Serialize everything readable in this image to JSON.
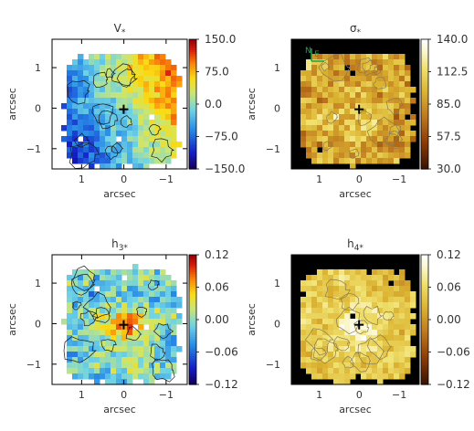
{
  "chart_data": [
    {
      "type": "heatmap",
      "title": "V",
      "title_sub": "*",
      "xlabel": "arcsec",
      "ylabel": "arcsec",
      "xticks": [
        "1",
        "0",
        "−1"
      ],
      "yticks": [
        "1",
        "0",
        "−1"
      ],
      "xlim": [
        1.7,
        -1.5
      ],
      "ylim": [
        -1.5,
        1.7
      ],
      "colorbar": {
        "ticks": [
          "150.0",
          "75.0",
          "0.0",
          "−75.0",
          "−150.0"
        ],
        "range": [
          -150,
          150
        ],
        "colormap": "jet"
      },
      "background": "#ffffff",
      "center_marker": "plus"
    },
    {
      "type": "heatmap",
      "title": "σ",
      "title_sub": "*",
      "xlabel": "arcsec",
      "ylabel": "arcsec",
      "xticks": [
        "1",
        "0",
        "−1"
      ],
      "yticks": [
        "1",
        "0",
        "−1"
      ],
      "xlim": [
        1.7,
        -1.5
      ],
      "ylim": [
        -1.5,
        1.7
      ],
      "colorbar": {
        "ticks": [
          "140.0",
          "112.5",
          "85.0",
          "57.5",
          "30.0"
        ],
        "range": [
          30,
          140
        ],
        "colormap": "heat"
      },
      "background": "#000000",
      "compass": {
        "north": "N",
        "east": "E",
        "color": "#1aa34a"
      },
      "center_marker": "plus"
    },
    {
      "type": "heatmap",
      "title": "h",
      "title_sub": "3*",
      "xlabel": "arcsec",
      "ylabel": "arcsec",
      "xticks": [
        "1",
        "0",
        "−1"
      ],
      "yticks": [
        "1",
        "0",
        "−1"
      ],
      "xlim": [
        1.7,
        -1.5
      ],
      "ylim": [
        -1.5,
        1.7
      ],
      "colorbar": {
        "ticks": [
          "0.12",
          "0.06",
          "0.00",
          "−0.06",
          "−0.12"
        ],
        "range": [
          -0.12,
          0.12
        ],
        "colormap": "jet"
      },
      "background": "#ffffff",
      "center_marker": "plus"
    },
    {
      "type": "heatmap",
      "title": "h",
      "title_sub": "4*",
      "xlabel": "arcsec",
      "ylabel": "arcsec",
      "xticks": [
        "1",
        "0",
        "−1"
      ],
      "yticks": [
        "1",
        "0",
        "−1"
      ],
      "xlim": [
        1.7,
        -1.5
      ],
      "ylim": [
        -1.5,
        1.7
      ],
      "colorbar": {
        "ticks": [
          "0.12",
          "0.06",
          "0.00",
          "−0.06",
          "−0.12"
        ],
        "range": [
          -0.12,
          0.12
        ],
        "colormap": "heat"
      },
      "background": "#000000",
      "center_marker": "plus"
    }
  ]
}
